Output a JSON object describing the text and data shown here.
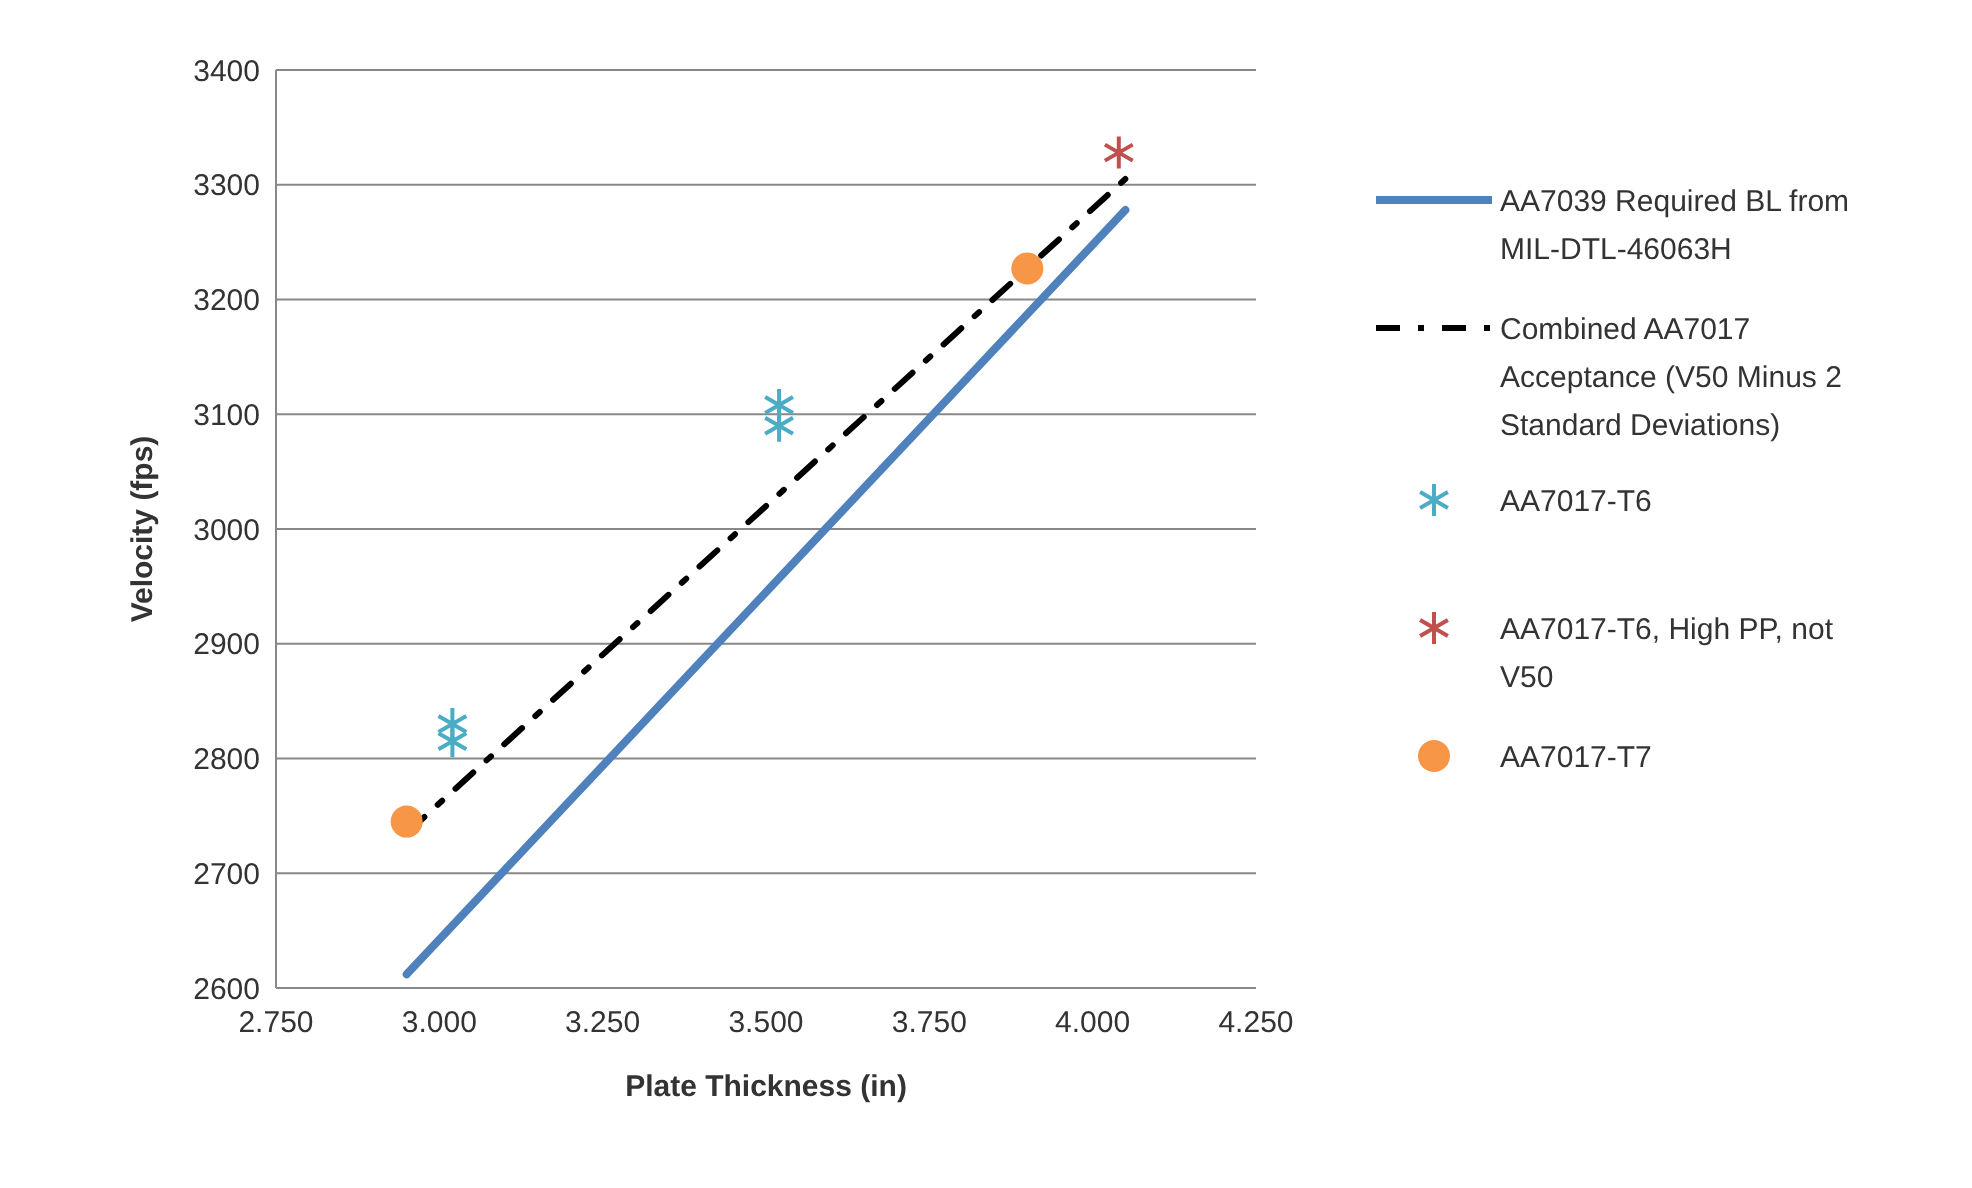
{
  "chart_data": {
    "type": "scatter",
    "xlabel": "Plate Thickness (in)",
    "ylabel": "Velocity (fps)",
    "xlim": [
      2.75,
      4.25
    ],
    "xticks": [
      {
        "value": 2.75,
        "label": "2.750"
      },
      {
        "value": 3,
        "label": "3.000"
      },
      {
        "value": 3.25,
        "label": "3.250"
      },
      {
        "value": 3.5,
        "label": "3.500"
      },
      {
        "value": 3.75,
        "label": "3.750"
      },
      {
        "value": 4,
        "label": "4.000"
      },
      {
        "value": 4.25,
        "label": "4.250"
      }
    ],
    "ylim": [
      2600,
      3400
    ],
    "yticks": [
      2600,
      2700,
      2800,
      2900,
      3000,
      3100,
      3200,
      3300,
      3400
    ],
    "grid": "y",
    "legend": "right",
    "series": [
      {
        "name": "AA7039 Required BL from MIL-DTL-46063H",
        "type": "line",
        "line_style": "solid",
        "marker": "none",
        "color": "#4f81bd",
        "x": [
          2.95,
          4.05
        ],
        "values": [
          2612,
          3278
        ]
      },
      {
        "name": "Combined AA7017 Acceptance (V50 Minus 2 Standard Deviations)",
        "type": "line",
        "line_style": "dashed",
        "marker": "none",
        "color": "#000000",
        "x": [
          2.95,
          4.05
        ],
        "values": [
          2735,
          3305
        ]
      },
      {
        "name": "AA7017-T6",
        "marker": "cross",
        "color": "#4bacc6",
        "x": [
          3.02,
          3.02,
          3.52,
          3.52
        ],
        "values": [
          2830,
          2815,
          3108,
          3090
        ]
      },
      {
        "name": "AA7017-T6, High PP, not V50",
        "marker": "cross",
        "color": "#c0504d",
        "x": [
          4.04
        ],
        "values": [
          3328
        ]
      },
      {
        "name": "AA7017-T7",
        "marker": "circle",
        "color": "#f79646",
        "x": [
          2.95,
          3.9
        ],
        "values": [
          2745,
          3227
        ]
      }
    ]
  }
}
